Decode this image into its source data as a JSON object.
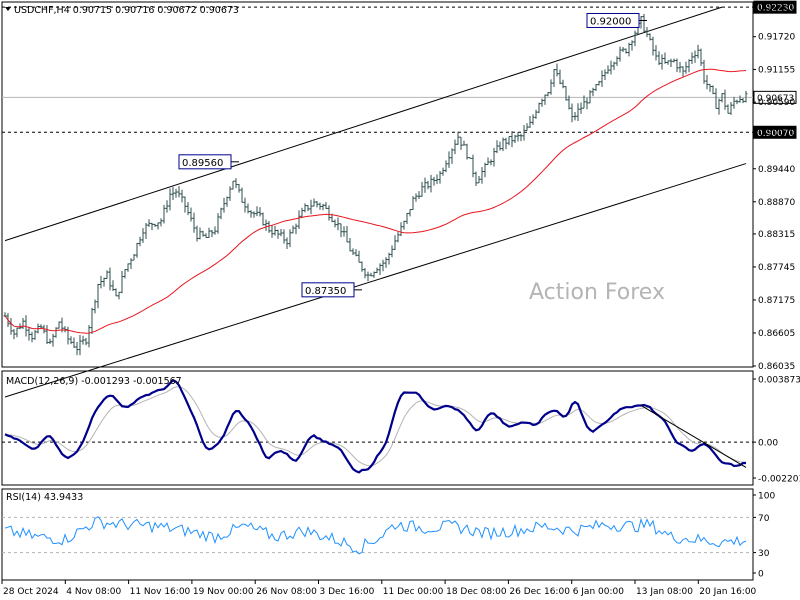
{
  "chart_data": [
    {
      "panel": "price",
      "type": "ohlc",
      "header": "USDCHF,H4  0.90715 0.90716 0.90672 0.90673",
      "watermark": "Action Forex",
      "ylim": [
        0.86035,
        0.9225
      ],
      "ticks": [
        "0.92230",
        "0.91720",
        "0.91155",
        "0.90590",
        "0.90070",
        "0.89440",
        "0.88870",
        "0.88315",
        "0.87745",
        "0.87175",
        "0.86605",
        "0.86035"
      ],
      "x_ticks": [
        "28 Oct 2024",
        "4 Nov 08:00",
        "11 Nov 16:00",
        "19 Nov 00:00",
        "26 Nov 08:00",
        "3 Dec 16:00",
        "11 Dec 00:00",
        "18 Dec 08:00",
        "26 Dec 16:00",
        "6 Jan 00:00",
        "13 Jan 08:00",
        "20 Jan 16:00"
      ],
      "price_path": [
        [
          0,
          0.869
        ],
        [
          3,
          0.866
        ],
        [
          6,
          0.868
        ],
        [
          9,
          0.8655
        ],
        [
          12,
          0.867
        ],
        [
          15,
          0.864
        ],
        [
          18,
          0.868
        ],
        [
          21,
          0.865
        ],
        [
          24,
          0.8635
        ],
        [
          27,
          0.865
        ],
        [
          31,
          0.8745
        ],
        [
          34,
          0.876
        ],
        [
          37,
          0.872
        ],
        [
          40,
          0.877
        ],
        [
          43,
          0.88
        ],
        [
          46,
          0.884
        ],
        [
          49,
          0.885
        ],
        [
          52,
          0.8855
        ],
        [
          55,
          0.89
        ],
        [
          57,
          0.8905
        ],
        [
          60,
          0.888
        ],
        [
          64,
          0.883
        ],
        [
          67,
          0.8825
        ],
        [
          70,
          0.884
        ],
        [
          74,
          0.89
        ],
        [
          76,
          0.8925
        ],
        [
          79,
          0.889
        ],
        [
          82,
          0.887
        ],
        [
          85,
          0.886
        ],
        [
          88,
          0.884
        ],
        [
          91,
          0.883
        ],
        [
          94,
          0.882
        ],
        [
          97,
          0.885
        ],
        [
          100,
          0.8875
        ],
        [
          103,
          0.8885
        ],
        [
          106,
          0.888
        ],
        [
          109,
          0.886
        ],
        [
          112,
          0.884
        ],
        [
          115,
          0.8805
        ],
        [
          118,
          0.878
        ],
        [
          121,
          0.876
        ],
        [
          124,
          0.8775
        ],
        [
          127,
          0.8785
        ],
        [
          130,
          0.882
        ],
        [
          133,
          0.885
        ],
        [
          136,
          0.889
        ],
        [
          139,
          0.891
        ],
        [
          142,
          0.892
        ],
        [
          145,
          0.8935
        ],
        [
          148,
          0.897
        ],
        [
          151,
          0.9
        ],
        [
          154,
          0.897
        ],
        [
          157,
          0.8925
        ],
        [
          160,
          0.8945
        ],
        [
          163,
          0.897
        ],
        [
          166,
          0.899
        ],
        [
          169,
          0.8995
        ],
        [
          172,
          0.9
        ],
        [
          175,
          0.902
        ],
        [
          178,
          0.906
        ],
        [
          181,
          0.908
        ],
        [
          183,
          0.9115
        ],
        [
          186,
          0.908
        ],
        [
          189,
          0.903
        ],
        [
          192,
          0.905
        ],
        [
          195,
          0.907
        ],
        [
          198,
          0.909
        ],
        [
          201,
          0.912
        ],
        [
          204,
          0.914
        ],
        [
          207,
          0.915
        ],
        [
          210,
          0.918
        ],
        [
          212,
          0.92
        ],
        [
          214,
          0.9175
        ],
        [
          217,
          0.9135
        ],
        [
          220,
          0.9125
        ],
        [
          223,
          0.913
        ],
        [
          226,
          0.911
        ],
        [
          229,
          0.914
        ],
        [
          231,
          0.915
        ],
        [
          233,
          0.91
        ],
        [
          235,
          0.908
        ],
        [
          237,
          0.9055
        ],
        [
          239,
          0.907
        ],
        [
          241,
          0.904
        ],
        [
          243,
          0.906
        ],
        [
          245,
          0.9067
        ]
      ],
      "price_noise": 0.0014,
      "levels": [
        {
          "label": "0.92000",
          "bar": 212,
          "value": 0.92
        },
        {
          "label": "0.89560",
          "bar": 76,
          "value": 0.8956
        },
        {
          "label": "0.87350",
          "bar": 117,
          "value": 0.8735
        }
      ],
      "channel_upper": [
        [
          0,
          0.882
        ],
        [
          239,
          0.9223
        ]
      ],
      "channel_lower": [
        [
          0,
          0.855
        ],
        [
          247,
          0.8953
        ]
      ],
      "hlines": [
        {
          "label": "0.92230",
          "value": 0.9223,
          "style": "dashed",
          "color": "#000000"
        },
        {
          "label": "0.90070",
          "value": 0.9007,
          "style": "dashed",
          "color": "#000000"
        },
        {
          "label": "0.90673",
          "value": 0.90673,
          "style": "solid",
          "color": "#b4b4b4"
        }
      ],
      "ma_period": 55,
      "colors": {
        "ohlc": "#2f4f4f",
        "ma": "#e8141e",
        "channel": "#000000"
      }
    },
    {
      "panel": "macd",
      "type": "line",
      "header": "MACD(12,26,9) -0.001293 -0.001567",
      "ylim": [
        -0.0022,
        0.003873
      ],
      "ticks": [
        "0.003873",
        "0.00",
        "-0.002201"
      ],
      "zero_tick": "0.00",
      "macd_path": [
        [
          0,
          0.0005
        ],
        [
          5,
          0.0
        ],
        [
          10,
          -0.0005
        ],
        [
          15,
          0.0005
        ],
        [
          20,
          -0.001
        ],
        [
          25,
          -0.0005
        ],
        [
          30,
          0.002
        ],
        [
          35,
          0.003
        ],
        [
          40,
          0.002
        ],
        [
          45,
          0.0028
        ],
        [
          50,
          0.003
        ],
        [
          57,
          0.0038
        ],
        [
          62,
          0.002
        ],
        [
          67,
          -0.0005
        ],
        [
          72,
          0.0
        ],
        [
          77,
          0.002
        ],
        [
          82,
          0.001
        ],
        [
          87,
          -0.001
        ],
        [
          92,
          -0.0005
        ],
        [
          97,
          -0.0012
        ],
        [
          102,
          0.0005
        ],
        [
          107,
          0.0
        ],
        [
          112,
          -0.0005
        ],
        [
          117,
          -0.002
        ],
        [
          122,
          -0.0015
        ],
        [
          127,
          0.0
        ],
        [
          132,
          0.003
        ],
        [
          137,
          0.003
        ],
        [
          142,
          0.002
        ],
        [
          147,
          0.0022
        ],
        [
          152,
          0.002
        ],
        [
          157,
          0.0005
        ],
        [
          162,
          0.002
        ],
        [
          167,
          0.001
        ],
        [
          172,
          0.0012
        ],
        [
          177,
          0.001
        ],
        [
          182,
          0.002
        ],
        [
          187,
          0.0015
        ],
        [
          190,
          0.0027
        ],
        [
          195,
          0.0005
        ],
        [
          200,
          0.0012
        ],
        [
          205,
          0.002
        ],
        [
          210,
          0.0022
        ],
        [
          214,
          0.0023
        ],
        [
          219,
          0.0015
        ],
        [
          224,
          0.0
        ],
        [
          229,
          -0.0005
        ],
        [
          234,
          0.0
        ],
        [
          239,
          -0.0012
        ],
        [
          244,
          -0.0015
        ],
        [
          247,
          -0.0013
        ]
      ],
      "macd_noise": 0.0003,
      "signal_period": 9,
      "trendline": [
        [
          212,
          0.00225
        ],
        [
          247,
          -0.00155
        ]
      ],
      "colors": {
        "macd": "#00008b",
        "signal": "#b4b4b4",
        "trend": "#000000"
      }
    },
    {
      "panel": "rsi",
      "type": "line",
      "header": "RSI(14) 43.9433",
      "ylim": [
        0,
        100
      ],
      "ticks": [
        "100",
        "70",
        "30",
        "0"
      ],
      "levels": [
        70,
        30
      ],
      "rsi_center": [
        [
          0,
          55
        ],
        [
          10,
          48
        ],
        [
          20,
          45
        ],
        [
          30,
          65
        ],
        [
          40,
          62
        ],
        [
          50,
          60
        ],
        [
          60,
          55
        ],
        [
          70,
          48
        ],
        [
          80,
          60
        ],
        [
          90,
          48
        ],
        [
          100,
          55
        ],
        [
          110,
          45
        ],
        [
          118,
          35
        ],
        [
          125,
          48
        ],
        [
          130,
          62
        ],
        [
          140,
          58
        ],
        [
          150,
          60
        ],
        [
          160,
          52
        ],
        [
          170,
          55
        ],
        [
          180,
          60
        ],
        [
          190,
          55
        ],
        [
          200,
          62
        ],
        [
          210,
          60
        ],
        [
          215,
          62
        ],
        [
          222,
          48
        ],
        [
          230,
          45
        ],
        [
          238,
          42
        ],
        [
          247,
          44
        ]
      ],
      "rsi_amplitude": 10,
      "color": "#1e90ff"
    }
  ]
}
